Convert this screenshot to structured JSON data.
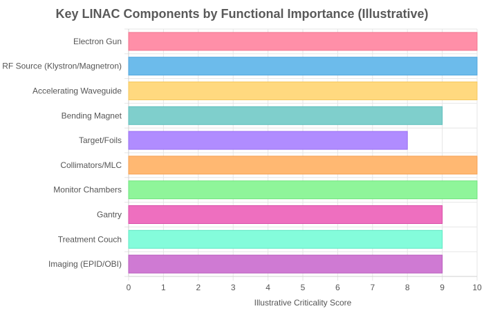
{
  "chart_data": {
    "type": "bar",
    "orientation": "horizontal",
    "title": "Key LINAC Components by Functional Importance (Illustrative)",
    "xlabel": "Illustrative Criticality Score",
    "ylabel": "",
    "xlim": [
      0,
      10
    ],
    "xticks": [
      0,
      1,
      2,
      3,
      4,
      5,
      6,
      7,
      8,
      9,
      10
    ],
    "grid": true,
    "legend": "none",
    "categories": [
      "Electron Gun",
      "RF Source (Klystron/Magnetron)",
      "Accelerating Waveguide",
      "Bending Magnet",
      "Target/Foils",
      "Collimators/MLC",
      "Monitor Chambers",
      "Gantry",
      "Treatment Couch",
      "Imaging (EPID/OBI)"
    ],
    "values": [
      10,
      10,
      10,
      9,
      8,
      10,
      10,
      9,
      9,
      9
    ],
    "colors": [
      "#ff8fa8",
      "#6cbbeb",
      "#ffd97f",
      "#7fcfcc",
      "#b08cff",
      "#ffb872",
      "#8ff59a",
      "#ee6fbf",
      "#84fcdb",
      "#cf7ad3"
    ],
    "border_colors": [
      "#f0768f",
      "#4fa6de",
      "#f5c85e",
      "#5fbfbc",
      "#9a6ff2",
      "#f5a052",
      "#6fe37d",
      "#d94fa8",
      "#5fe8c4",
      "#b95dbf"
    ]
  }
}
